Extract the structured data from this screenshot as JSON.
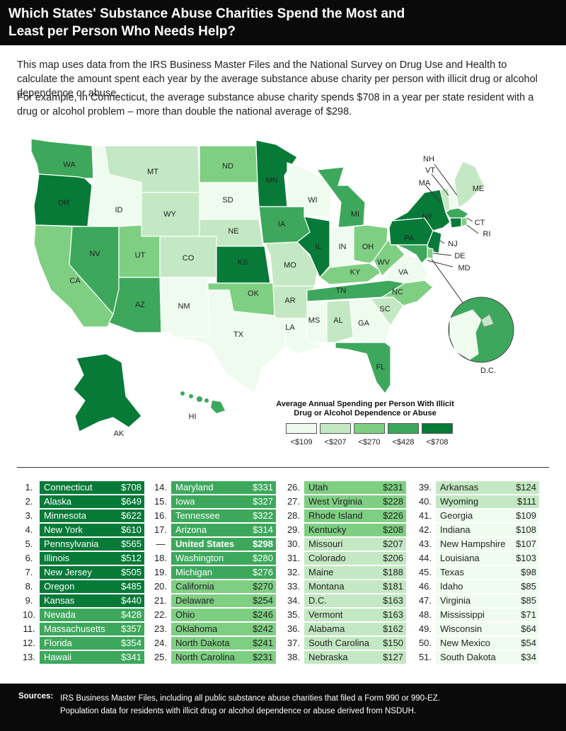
{
  "title": "Which States' Substance Abuse Charities Spend the Most and Least per Person Who Needs Help?",
  "intro": [
    "This map uses data from the IRS Business Master Files and the National Survey on Drug Use and Health to calculate the amount spent each year by the average substance abuse charity per person with illicit drug or alcohol dependence or abuse.",
    "For example, in Connecticut, the average substance abuse charity spends $708 in a year per state resident with a drug or alcohol problem – more than double the national average of $298."
  ],
  "colors": {
    "tier1": "#effbee",
    "tier2": "#c4e8c3",
    "tier3": "#7fcf83",
    "tier4": "#3da85c",
    "tier5": "#077a38",
    "header": "#0a0a0a",
    "text": "#222222"
  },
  "legend": {
    "title": "Average Annual Spending per Person With Illicit Drug or Alcohol Dependence or Abuse",
    "items": [
      {
        "label": "<$109",
        "tier": 1
      },
      {
        "label": "<$207",
        "tier": 2
      },
      {
        "label": "<$270",
        "tier": 3
      },
      {
        "label": "<$428",
        "tier": 4
      },
      {
        "label": "<$708",
        "tier": 5
      }
    ]
  },
  "map_labels": [
    "WA",
    "OR",
    "CA",
    "ID",
    "NV",
    "MT",
    "WY",
    "UT",
    "AZ",
    "CO",
    "NM",
    "ND",
    "SD",
    "NE",
    "KS",
    "OK",
    "TX",
    "MN",
    "IA",
    "MO",
    "AR",
    "LA",
    "WI",
    "IL",
    "MI",
    "IN",
    "OH",
    "KY",
    "TN",
    "MS",
    "AL",
    "GA",
    "FL",
    "SC",
    "NC",
    "VA",
    "WV",
    "PA",
    "NY",
    "VT",
    "NH",
    "ME",
    "MA",
    "CT",
    "RI",
    "NJ",
    "DE",
    "MD",
    "D.C.",
    "AK",
    "HI"
  ],
  "rankings": [
    {
      "rank": "1.",
      "state": "Connecticut",
      "value": "$708",
      "tier": 5
    },
    {
      "rank": "2.",
      "state": "Alaska",
      "value": "$649",
      "tier": 5
    },
    {
      "rank": "3.",
      "state": "Minnesota",
      "value": "$622",
      "tier": 5
    },
    {
      "rank": "4.",
      "state": "New York",
      "value": "$610",
      "tier": 5
    },
    {
      "rank": "5.",
      "state": "Pennsylvania",
      "value": "$565",
      "tier": 5
    },
    {
      "rank": "6.",
      "state": "Illinois",
      "value": "$512",
      "tier": 5
    },
    {
      "rank": "7.",
      "state": "New Jersey",
      "value": "$505",
      "tier": 5
    },
    {
      "rank": "8.",
      "state": "Oregon",
      "value": "$485",
      "tier": 5
    },
    {
      "rank": "9.",
      "state": "Kansas",
      "value": "$440",
      "tier": 5
    },
    {
      "rank": "10.",
      "state": "Nevada",
      "value": "$428",
      "tier": 4
    },
    {
      "rank": "11.",
      "state": "Massachusetts",
      "value": "$357",
      "tier": 4
    },
    {
      "rank": "12.",
      "state": "Florida",
      "value": "$354",
      "tier": 4
    },
    {
      "rank": "13.",
      "state": "Hawaii",
      "value": "$341",
      "tier": 4
    },
    {
      "rank": "14.",
      "state": "Maryland",
      "value": "$331",
      "tier": 4
    },
    {
      "rank": "15.",
      "state": "Iowa",
      "value": "$327",
      "tier": 4
    },
    {
      "rank": "16.",
      "state": "Tennessee",
      "value": "$322",
      "tier": 4
    },
    {
      "rank": "17.",
      "state": "Arizona",
      "value": "$314",
      "tier": 4
    },
    {
      "rank": "—",
      "state": "United States",
      "value": "$298",
      "tier": 4,
      "us": true
    },
    {
      "rank": "18.",
      "state": "Washington",
      "value": "$280",
      "tier": 4
    },
    {
      "rank": "19.",
      "state": "Michigan",
      "value": "$276",
      "tier": 4
    },
    {
      "rank": "20.",
      "state": "California",
      "value": "$270",
      "tier": 3
    },
    {
      "rank": "21.",
      "state": "Delaware",
      "value": "$254",
      "tier": 3
    },
    {
      "rank": "22.",
      "state": "Ohio",
      "value": "$246",
      "tier": 3
    },
    {
      "rank": "23.",
      "state": "Oklahoma",
      "value": "$242",
      "tier": 3
    },
    {
      "rank": "24.",
      "state": "North Dakota",
      "value": "$241",
      "tier": 3
    },
    {
      "rank": "25.",
      "state": "North Carolina",
      "value": "$231",
      "tier": 3
    },
    {
      "rank": "26.",
      "state": "Utah",
      "value": "$231",
      "tier": 3
    },
    {
      "rank": "27.",
      "state": "West Virginia",
      "value": "$228",
      "tier": 3
    },
    {
      "rank": "28.",
      "state": "Rhode Island",
      "value": "$226",
      "tier": 3
    },
    {
      "rank": "29.",
      "state": "Kentucky",
      "value": "$208",
      "tier": 3
    },
    {
      "rank": "30.",
      "state": "Missouri",
      "value": "$207",
      "tier": 2
    },
    {
      "rank": "31.",
      "state": "Colorado",
      "value": "$206",
      "tier": 2
    },
    {
      "rank": "32.",
      "state": "Maine",
      "value": "$188",
      "tier": 2
    },
    {
      "rank": "33.",
      "state": "Montana",
      "value": "$181",
      "tier": 2
    },
    {
      "rank": "34.",
      "state": "D.C.",
      "value": "$163",
      "tier": 2
    },
    {
      "rank": "35.",
      "state": "Vermont",
      "value": "$163",
      "tier": 2
    },
    {
      "rank": "36.",
      "state": "Alabama",
      "value": "$162",
      "tier": 2
    },
    {
      "rank": "37.",
      "state": "South Carolina",
      "value": "$150",
      "tier": 2
    },
    {
      "rank": "38.",
      "state": "Nebraska",
      "value": "$127",
      "tier": 2
    },
    {
      "rank": "39.",
      "state": "Arkansas",
      "value": "$124",
      "tier": 2
    },
    {
      "rank": "40.",
      "state": "Wyoming",
      "value": "$111",
      "tier": 2
    },
    {
      "rank": "41.",
      "state": "Georgia",
      "value": "$109",
      "tier": 1
    },
    {
      "rank": "42.",
      "state": "Indiana",
      "value": "$108",
      "tier": 1
    },
    {
      "rank": "43.",
      "state": "New Hampshire",
      "value": "$107",
      "tier": 1
    },
    {
      "rank": "44.",
      "state": "Louisiana",
      "value": "$103",
      "tier": 1
    },
    {
      "rank": "45.",
      "state": "Texas",
      "value": "$98",
      "tier": 1
    },
    {
      "rank": "46.",
      "state": "Idaho",
      "value": "$85",
      "tier": 1
    },
    {
      "rank": "47.",
      "state": "Virginia",
      "value": "$85",
      "tier": 1
    },
    {
      "rank": "48.",
      "state": "Mississippi",
      "value": "$71",
      "tier": 1
    },
    {
      "rank": "49.",
      "state": "Wisconsin",
      "value": "$64",
      "tier": 1
    },
    {
      "rank": "50.",
      "state": "New Mexico",
      "value": "$54",
      "tier": 1
    },
    {
      "rank": "51.",
      "state": "South Dakota",
      "value": "$34",
      "tier": 1
    }
  ],
  "footer": {
    "label": "Sources:",
    "lines": [
      "IRS Business Master Files, including all public substance abuse charities that filed a Form 990 or 990-EZ.",
      "Population data for residents with illicit drug or alcohol dependence or abuse derived from NSDUH."
    ]
  }
}
